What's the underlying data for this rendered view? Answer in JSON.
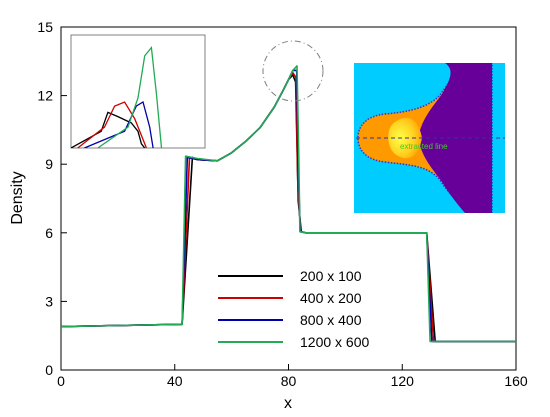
{
  "chart_data": {
    "type": "line",
    "xlabel": "x",
    "ylabel": "Density",
    "xlim": [
      0,
      160
    ],
    "ylim": [
      0,
      15
    ],
    "xticks": [
      0,
      40,
      80,
      120,
      160
    ],
    "yticks": [
      0,
      3,
      6,
      9,
      12,
      15
    ],
    "grid": false,
    "legend_position": "bottom-center",
    "series": [
      {
        "name": "200 x 100",
        "color": "#000000",
        "x": [
          0,
          42.6,
          46.2,
          48,
          55,
          60,
          65,
          70,
          75,
          78,
          80,
          81.5,
          82.5,
          83.4,
          84.5,
          86,
          100,
          128.6,
          131.6,
          135,
          160
        ],
        "y": [
          1.9,
          2.0,
          9.3,
          9.2,
          9.15,
          9.5,
          10.0,
          10.6,
          11.5,
          12.2,
          12.7,
          12.9,
          12.6,
          7.4,
          6.05,
          6.0,
          6.0,
          6.0,
          1.25,
          1.25,
          1.25
        ]
      },
      {
        "name": "400 x 200",
        "color": "#cc0000",
        "x": [
          0,
          42.6,
          45.2,
          48,
          55,
          60,
          65,
          70,
          75,
          78,
          80,
          81.5,
          82.6,
          83.3,
          84.3,
          86,
          100,
          128.6,
          131,
          135,
          160
        ],
        "y": [
          1.9,
          2.0,
          9.3,
          9.2,
          9.15,
          9.5,
          10.0,
          10.6,
          11.5,
          12.2,
          12.7,
          13.0,
          12.8,
          8.0,
          6.05,
          6.0,
          6.0,
          6.0,
          1.25,
          1.25,
          1.25
        ]
      },
      {
        "name": "800 x 400",
        "color": "#0000aa",
        "x": [
          0,
          42.6,
          44.4,
          48,
          55,
          60,
          65,
          70,
          75,
          78,
          80,
          81.5,
          82.9,
          83.4,
          84.1,
          86,
          100,
          128.6,
          130.4,
          135,
          160
        ],
        "y": [
          1.9,
          2.0,
          9.3,
          9.2,
          9.15,
          9.5,
          10.0,
          10.6,
          11.5,
          12.2,
          12.7,
          13.1,
          13.1,
          9.0,
          6.05,
          6.0,
          6.0,
          6.0,
          1.25,
          1.25,
          1.25
        ]
      },
      {
        "name": "1200 x 600",
        "color": "#22aa55",
        "x": [
          0,
          42.6,
          43.8,
          48,
          55,
          60,
          65,
          70,
          75,
          78,
          80,
          81.5,
          83.0,
          83.6,
          84.0,
          86,
          100,
          128.6,
          129.8,
          135,
          160
        ],
        "y": [
          1.9,
          2.0,
          9.35,
          9.25,
          9.15,
          9.5,
          10.0,
          10.6,
          11.5,
          12.2,
          12.7,
          13.1,
          13.3,
          9.5,
          6.05,
          6.0,
          6.0,
          6.0,
          1.25,
          1.25,
          1.25
        ]
      }
    ],
    "annotations": {
      "zoom_inset": {
        "description_visible": false,
        "x_range": [
          80,
          85
        ],
        "y_range": [
          11.5,
          14.5
        ]
      },
      "circle_highlight": {
        "center": [
          83,
          13
        ],
        "style": "dash-dot gray"
      },
      "image_inset": {
        "label": "extracted line",
        "colors": {
          "background": "#00ccff",
          "plume": "#ff9900",
          "region": "#660099",
          "core": "#ffff33",
          "contour": "#3333cc"
        }
      }
    }
  }
}
